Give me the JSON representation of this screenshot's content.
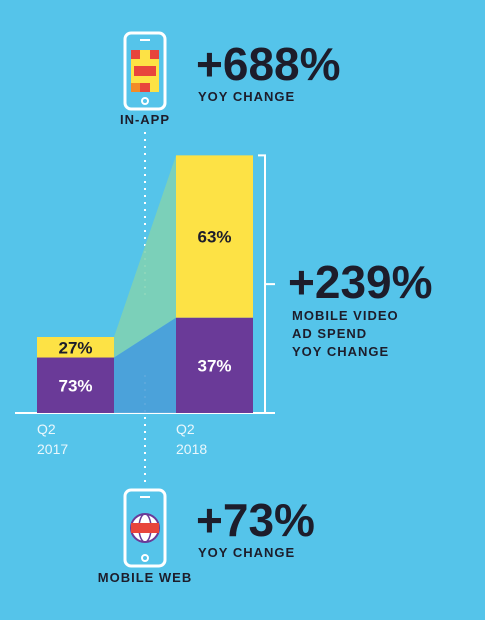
{
  "chart_data": {
    "type": "bar",
    "stacked": true,
    "categories": [
      [
        "Q2",
        "2017"
      ],
      [
        "Q2",
        "2018"
      ]
    ],
    "series": [
      {
        "name": "MOBILE WEB",
        "color": "#6a3a98",
        "values": [
          73,
          37
        ],
        "value_labels": [
          "73%",
          "37%"
        ],
        "growth": 73,
        "growth_label": "+73%",
        "growth_text": "YOY CHANGE"
      },
      {
        "name": "IN-APP",
        "color": "#fde245",
        "values": [
          27,
          63
        ],
        "value_labels": [
          "27%",
          "63%"
        ],
        "growth": 688,
        "growth_label": "+688%",
        "growth_text": "YOY CHANGE"
      }
    ],
    "total_growth": 239,
    "total_growth_label": "+239%",
    "total_growth_text": [
      "MOBILE VIDEO",
      "AD SPEND",
      "YOY CHANGE"
    ]
  }
}
